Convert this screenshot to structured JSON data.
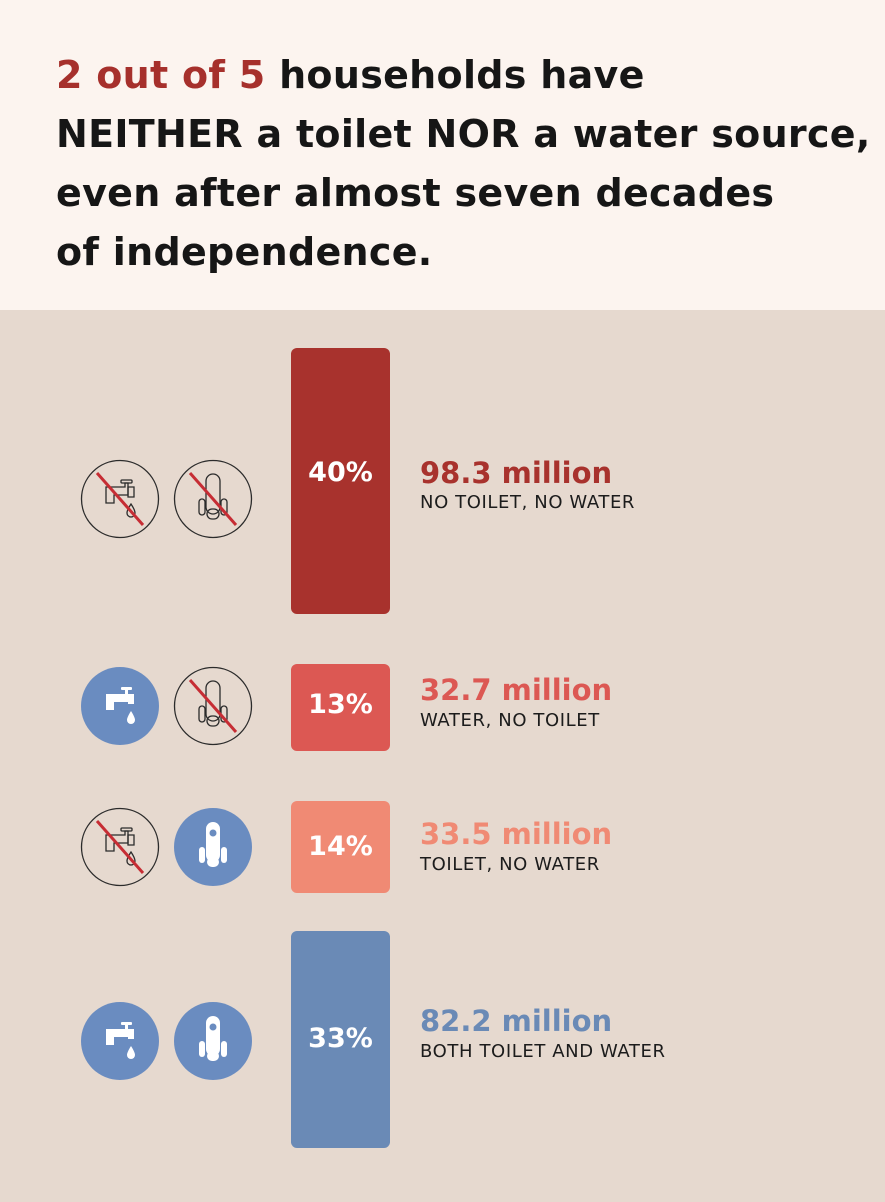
{
  "header": {
    "highlight": "2 out of 5",
    "line1_rest": " households have",
    "line2": "NEITHER a toilet NOR a water source,",
    "line3": "even after almost seven decades",
    "line4": "of independence."
  },
  "colors": {
    "highlight": "#a6302c",
    "icon_blue": "#6a8cc0",
    "crossed_line": "#c62d34",
    "header_bg": "#fcf4ef",
    "panel_bg": "#e6d9cf"
  },
  "chart_data": {
    "type": "bar",
    "categories": [
      "NO TOILET, NO WATER",
      "WATER, NO TOILET",
      "TOILET, NO WATER",
      "BOTH TOILET AND WATER"
    ],
    "percentages": [
      40,
      13,
      14,
      33
    ],
    "percent_labels": [
      "40%",
      "13%",
      "14%",
      "33%"
    ],
    "values_millions": [
      98.3,
      32.7,
      33.5,
      82.2
    ],
    "value_labels": [
      "98.3 million",
      "32.7 million",
      "33.5 million",
      "82.2 million"
    ],
    "bar_colors": [
      "#a8322d",
      "#dc5853",
      "#f08a74",
      "#6a8ab6"
    ],
    "icons": [
      [
        "no-water-icon",
        "no-toilet-icon"
      ],
      [
        "water-tap-icon",
        "no-toilet-icon"
      ],
      [
        "no-water-icon",
        "toilet-icon"
      ],
      [
        "water-tap-icon",
        "toilet-icon"
      ]
    ]
  }
}
